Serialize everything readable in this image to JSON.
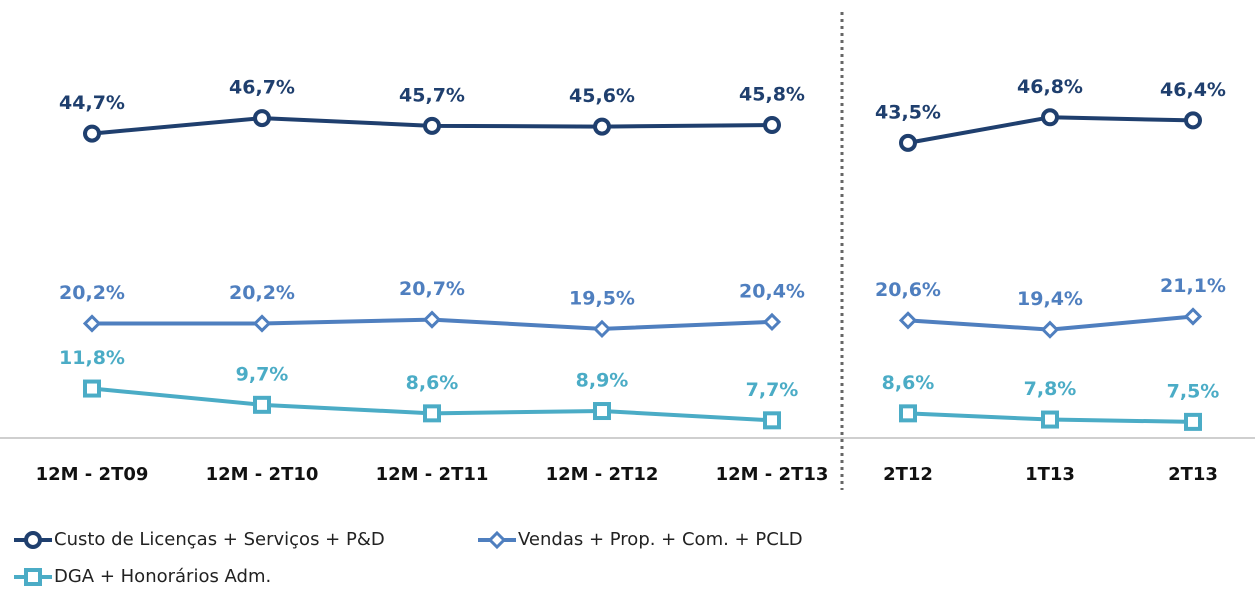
{
  "chart_data": {
    "type": "line",
    "categories": [
      "12M - 2T09",
      "12M - 2T10",
      "12M - 2T11",
      "12M - 2T12",
      "12M - 2T13",
      "2T12",
      "1T13",
      "2T13"
    ],
    "series": [
      {
        "name": "Custo de Licenças + Serviços + P&D",
        "color": "#1f3f6e",
        "marker": "circle",
        "values": [
          44.7,
          46.7,
          45.7,
          45.6,
          45.8,
          43.5,
          46.8,
          46.4
        ],
        "value_labels": [
          "44,7%",
          "46,7%",
          "45,7%",
          "45,6%",
          "45,8%",
          "43,5%",
          "46,8%",
          "46,4%"
        ]
      },
      {
        "name": "Vendas + Prop. + Com. + PCLD",
        "color": "#4f7fbf",
        "marker": "diamond",
        "values": [
          20.2,
          20.2,
          20.7,
          19.5,
          20.4,
          20.6,
          19.4,
          21.1
        ],
        "value_labels": [
          "20,2%",
          "20,2%",
          "20,7%",
          "19,5%",
          "20,4%",
          "20,6%",
          "19,4%",
          "21,1%"
        ]
      },
      {
        "name": "DGA + Honorários Adm.",
        "color": "#4bacc6",
        "marker": "square",
        "values": [
          11.8,
          9.7,
          8.6,
          8.9,
          7.7,
          8.6,
          7.8,
          7.5
        ],
        "value_labels": [
          "11,8%",
          "9,7%",
          "8,6%",
          "8,9%",
          "7,7%",
          "8,6%",
          "7,8%",
          "7,5%"
        ]
      }
    ]
  }
}
